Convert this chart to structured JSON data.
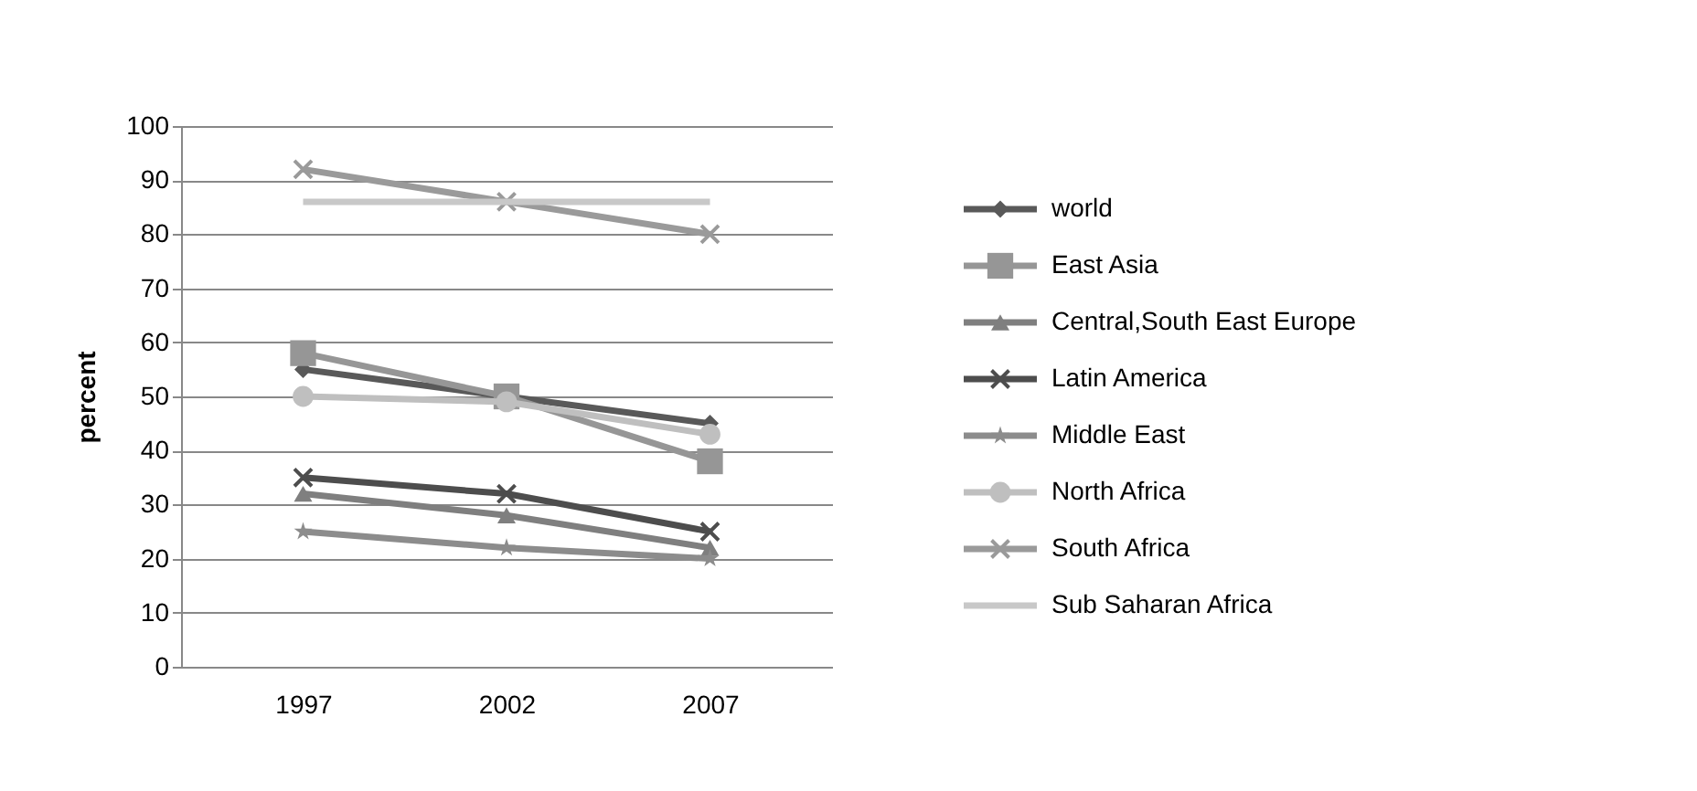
{
  "chart_data": {
    "type": "line",
    "ylabel": "percent",
    "categories": [
      "1997",
      "2002",
      "2007"
    ],
    "ylim": [
      0,
      100
    ],
    "yticks": [
      0,
      10,
      20,
      30,
      40,
      50,
      60,
      70,
      80,
      90,
      100
    ],
    "grid": "y",
    "legend": "right",
    "line_style": "solid",
    "series": [
      {
        "name": "world",
        "color": "#595959",
        "marker": "diamond",
        "values": [
          55,
          50,
          45
        ]
      },
      {
        "name": "East Asia",
        "color": "#969696",
        "marker": "square",
        "values": [
          58,
          50,
          38
        ]
      },
      {
        "name": "Central,South East  Europe",
        "color": "#7f7f7f",
        "marker": "triangle",
        "values": [
          32,
          28,
          22
        ]
      },
      {
        "name": "Latin America",
        "color": "#4d4d4d",
        "marker": "cross",
        "values": [
          35,
          32,
          25
        ]
      },
      {
        "name": "Middle East",
        "color": "#8c8c8c",
        "marker": "star",
        "values": [
          25,
          22,
          20
        ]
      },
      {
        "name": "North Africa",
        "color": "#bfbfbf",
        "marker": "circle",
        "values": [
          50,
          49,
          43
        ]
      },
      {
        "name": "South Africa",
        "color": "#9a9a9a",
        "marker": "cross",
        "values": [
          92,
          86,
          80
        ]
      },
      {
        "name": "Sub Saharan Africa",
        "color": "#c8c8c8",
        "marker": "none",
        "values": [
          86,
          86,
          86
        ]
      }
    ]
  }
}
